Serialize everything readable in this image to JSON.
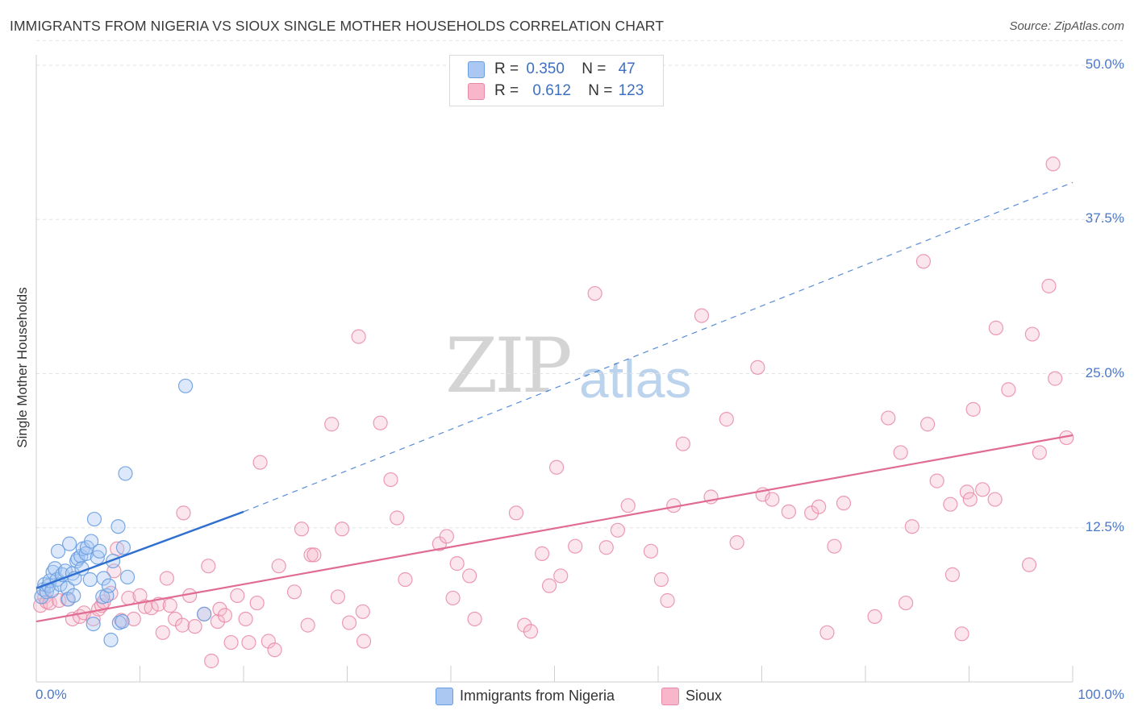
{
  "header": {
    "title": "IMMIGRANTS FROM NIGERIA VS SIOUX SINGLE MOTHER HOUSEHOLDS CORRELATION CHART",
    "source": "Source: ZipAtlas.com"
  },
  "watermark": {
    "zip": "ZIP",
    "atlas": "atlas"
  },
  "legend_top": [
    {
      "swatch": "#aac8f2",
      "r_label": "R =",
      "r_value": "0.350",
      "n_label": "N =",
      "n_value": "47"
    },
    {
      "swatch": "#f7b6ca",
      "r_label": "R =",
      "r_value": "0.612",
      "n_label": "N =",
      "n_value": "123"
    }
  ],
  "legend_bottom": [
    {
      "label": "Immigrants from Nigeria",
      "swatch": "#aac8f2"
    },
    {
      "label": "Sioux",
      "swatch": "#f7b6ca"
    }
  ],
  "chart_data": {
    "type": "scatter",
    "title": "IMMIGRANTS FROM NIGERIA VS SIOUX SINGLE MOTHER HOUSEHOLDS CORRELATION CHART",
    "xlabel": "",
    "ylabel": "Single Mother Households",
    "xlim": [
      0,
      100
    ],
    "ylim": [
      0,
      52
    ],
    "x_tick_labels": [
      "0.0%",
      "100.0%"
    ],
    "y_ticks": [
      12.5,
      25.0,
      37.5,
      50.0
    ],
    "y_tick_labels": [
      "12.5%",
      "25.0%",
      "37.5%",
      "50.0%"
    ],
    "grid": true,
    "colors": {
      "nigeria_fill": "#aac8f2",
      "nigeria_stroke": "#6a9ee0",
      "nigeria_line": "#2f6fd0",
      "sioux_fill": "#f7b6ca",
      "sioux_stroke": "#e88aa6",
      "sioux_line": "#e06b93",
      "tick_text": "#4a78c9"
    },
    "series": [
      {
        "name": "Immigrants from Nigeria",
        "R": 0.35,
        "N": 47,
        "trend": {
          "x0": 0,
          "y0": 7.6,
          "x1": 20,
          "y1": 13.8
        },
        "trend_extended": {
          "x0": 20,
          "y0": 13.8,
          "x1": 100,
          "y1": 40.5
        },
        "points": [
          [
            0.5,
            6.9
          ],
          [
            0.7,
            7.5
          ],
          [
            0.8,
            7.9
          ],
          [
            1.0,
            7.3
          ],
          [
            1.2,
            7.8
          ],
          [
            1.3,
            8.2
          ],
          [
            1.5,
            7.4
          ],
          [
            1.6,
            8.9
          ],
          [
            1.8,
            9.2
          ],
          [
            2.0,
            8.3
          ],
          [
            2.1,
            10.6
          ],
          [
            2.3,
            7.9
          ],
          [
            2.5,
            8.7
          ],
          [
            2.8,
            9.0
          ],
          [
            3.0,
            7.6
          ],
          [
            3.1,
            6.7
          ],
          [
            3.2,
            11.2
          ],
          [
            3.5,
            8.8
          ],
          [
            3.6,
            7.0
          ],
          [
            3.7,
            8.4
          ],
          [
            3.9,
            9.8
          ],
          [
            4.0,
            10.0
          ],
          [
            4.3,
            10.2
          ],
          [
            4.4,
            9.2
          ],
          [
            4.5,
            10.8
          ],
          [
            4.8,
            10.4
          ],
          [
            4.9,
            10.9
          ],
          [
            5.2,
            8.3
          ],
          [
            5.3,
            11.4
          ],
          [
            5.5,
            4.7
          ],
          [
            5.6,
            13.2
          ],
          [
            5.9,
            10.1
          ],
          [
            6.1,
            10.6
          ],
          [
            6.4,
            6.9
          ],
          [
            6.5,
            8.4
          ],
          [
            6.8,
            7.0
          ],
          [
            7.0,
            7.8
          ],
          [
            7.2,
            3.4
          ],
          [
            7.4,
            9.8
          ],
          [
            7.9,
            12.6
          ],
          [
            8.0,
            4.8
          ],
          [
            8.3,
            4.9
          ],
          [
            8.4,
            10.9
          ],
          [
            8.6,
            16.9
          ],
          [
            8.8,
            8.5
          ],
          [
            14.4,
            24.0
          ],
          [
            16.2,
            5.5
          ]
        ]
      },
      {
        "name": "Sioux",
        "R": 0.612,
        "N": 123,
        "trend": {
          "x0": 0,
          "y0": 4.9,
          "x1": 100,
          "y1": 20.0
        },
        "points": [
          [
            0.4,
            6.2
          ],
          [
            0.8,
            6.9
          ],
          [
            1.0,
            6.5
          ],
          [
            1.3,
            6.4
          ],
          [
            2.2,
            6.6
          ],
          [
            3.0,
            6.7
          ],
          [
            3.5,
            5.1
          ],
          [
            4.2,
            5.3
          ],
          [
            4.6,
            5.6
          ],
          [
            5.5,
            5.1
          ],
          [
            6.0,
            5.9
          ],
          [
            6.3,
            6.2
          ],
          [
            6.5,
            6.5
          ],
          [
            7.2,
            7.2
          ],
          [
            7.5,
            9.0
          ],
          [
            7.8,
            10.8
          ],
          [
            8.2,
            5.0
          ],
          [
            8.9,
            6.8
          ],
          [
            9.4,
            5.1
          ],
          [
            10.0,
            7.0
          ],
          [
            10.5,
            6.1
          ],
          [
            11.1,
            6.0
          ],
          [
            11.8,
            6.3
          ],
          [
            12.2,
            4.0
          ],
          [
            12.6,
            8.4
          ],
          [
            12.9,
            6.2
          ],
          [
            13.4,
            5.1
          ],
          [
            14.1,
            4.6
          ],
          [
            14.2,
            13.7
          ],
          [
            14.8,
            7.0
          ],
          [
            15.3,
            4.5
          ],
          [
            16.2,
            5.5
          ],
          [
            16.6,
            9.4
          ],
          [
            16.9,
            1.7
          ],
          [
            17.5,
            4.9
          ],
          [
            17.7,
            5.9
          ],
          [
            18.2,
            5.4
          ],
          [
            18.8,
            3.2
          ],
          [
            19.4,
            7.0
          ],
          [
            20.2,
            5.1
          ],
          [
            20.5,
            3.2
          ],
          [
            21.3,
            6.4
          ],
          [
            21.6,
            17.8
          ],
          [
            22.4,
            3.3
          ],
          [
            23.0,
            2.6
          ],
          [
            23.4,
            9.4
          ],
          [
            24.9,
            7.3
          ],
          [
            25.6,
            12.4
          ],
          [
            26.2,
            4.6
          ],
          [
            26.5,
            10.3
          ],
          [
            26.8,
            10.3
          ],
          [
            28.5,
            20.9
          ],
          [
            29.1,
            6.9
          ],
          [
            29.5,
            12.4
          ],
          [
            30.2,
            4.8
          ],
          [
            31.1,
            28.0
          ],
          [
            31.5,
            5.7
          ],
          [
            31.6,
            3.3
          ],
          [
            33.2,
            21.0
          ],
          [
            34.2,
            16.4
          ],
          [
            34.8,
            13.3
          ],
          [
            35.6,
            8.3
          ],
          [
            38.9,
            11.2
          ],
          [
            39.6,
            11.8
          ],
          [
            40.2,
            6.8
          ],
          [
            40.6,
            9.6
          ],
          [
            41.8,
            8.6
          ],
          [
            42.3,
            5.1
          ],
          [
            46.3,
            13.7
          ],
          [
            47.1,
            4.6
          ],
          [
            47.7,
            4.1
          ],
          [
            48.8,
            10.4
          ],
          [
            49.5,
            7.8
          ],
          [
            50.2,
            17.4
          ],
          [
            50.6,
            8.6
          ],
          [
            52.0,
            11.0
          ],
          [
            53.9,
            31.5
          ],
          [
            55.0,
            10.9
          ],
          [
            56.1,
            12.3
          ],
          [
            57.1,
            14.3
          ],
          [
            59.3,
            10.6
          ],
          [
            60.3,
            8.3
          ],
          [
            60.9,
            6.6
          ],
          [
            61.5,
            14.3
          ],
          [
            62.4,
            19.3
          ],
          [
            64.2,
            29.7
          ],
          [
            65.1,
            15.0
          ],
          [
            66.6,
            21.3
          ],
          [
            67.6,
            11.3
          ],
          [
            69.6,
            25.5
          ],
          [
            70.1,
            15.2
          ],
          [
            71.0,
            14.8
          ],
          [
            72.6,
            13.8
          ],
          [
            74.8,
            13.7
          ],
          [
            75.5,
            14.2
          ],
          [
            76.3,
            4.0
          ],
          [
            77.0,
            11.0
          ],
          [
            77.9,
            14.5
          ],
          [
            80.9,
            5.3
          ],
          [
            82.2,
            21.4
          ],
          [
            83.4,
            18.6
          ],
          [
            83.9,
            6.4
          ],
          [
            84.5,
            12.6
          ],
          [
            85.6,
            34.1
          ],
          [
            86.0,
            20.9
          ],
          [
            86.9,
            16.3
          ],
          [
            88.2,
            14.4
          ],
          [
            88.4,
            8.7
          ],
          [
            89.3,
            3.9
          ],
          [
            89.8,
            15.4
          ],
          [
            90.1,
            14.8
          ],
          [
            90.4,
            22.1
          ],
          [
            91.3,
            15.6
          ],
          [
            92.5,
            14.8
          ],
          [
            92.6,
            28.7
          ],
          [
            93.8,
            23.7
          ],
          [
            95.8,
            9.5
          ],
          [
            96.1,
            28.2
          ],
          [
            96.8,
            18.6
          ],
          [
            97.7,
            32.1
          ],
          [
            98.1,
            42.0
          ],
          [
            98.3,
            24.6
          ],
          [
            99.4,
            19.8
          ]
        ]
      }
    ]
  }
}
